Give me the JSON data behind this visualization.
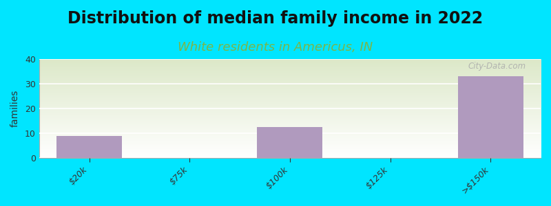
{
  "title": "Distribution of median family income in 2022",
  "subtitle": "White residents in Americus, IN",
  "categories": [
    "$20k",
    "$75k",
    "$100k",
    "$125k",
    ">$150k"
  ],
  "values": [
    9,
    0,
    12.5,
    0,
    33
  ],
  "bar_color": "#b09abe",
  "background_outer": "#00e5ff",
  "background_inner_top": "#dce8c8",
  "background_inner_bottom": "#ffffff",
  "ylabel": "families",
  "ylim": [
    0,
    40
  ],
  "yticks": [
    0,
    10,
    20,
    30,
    40
  ],
  "title_fontsize": 17,
  "subtitle_fontsize": 13,
  "subtitle_color": "#7ab648",
  "watermark": "City-Data.com",
  "bar_width": 0.65
}
